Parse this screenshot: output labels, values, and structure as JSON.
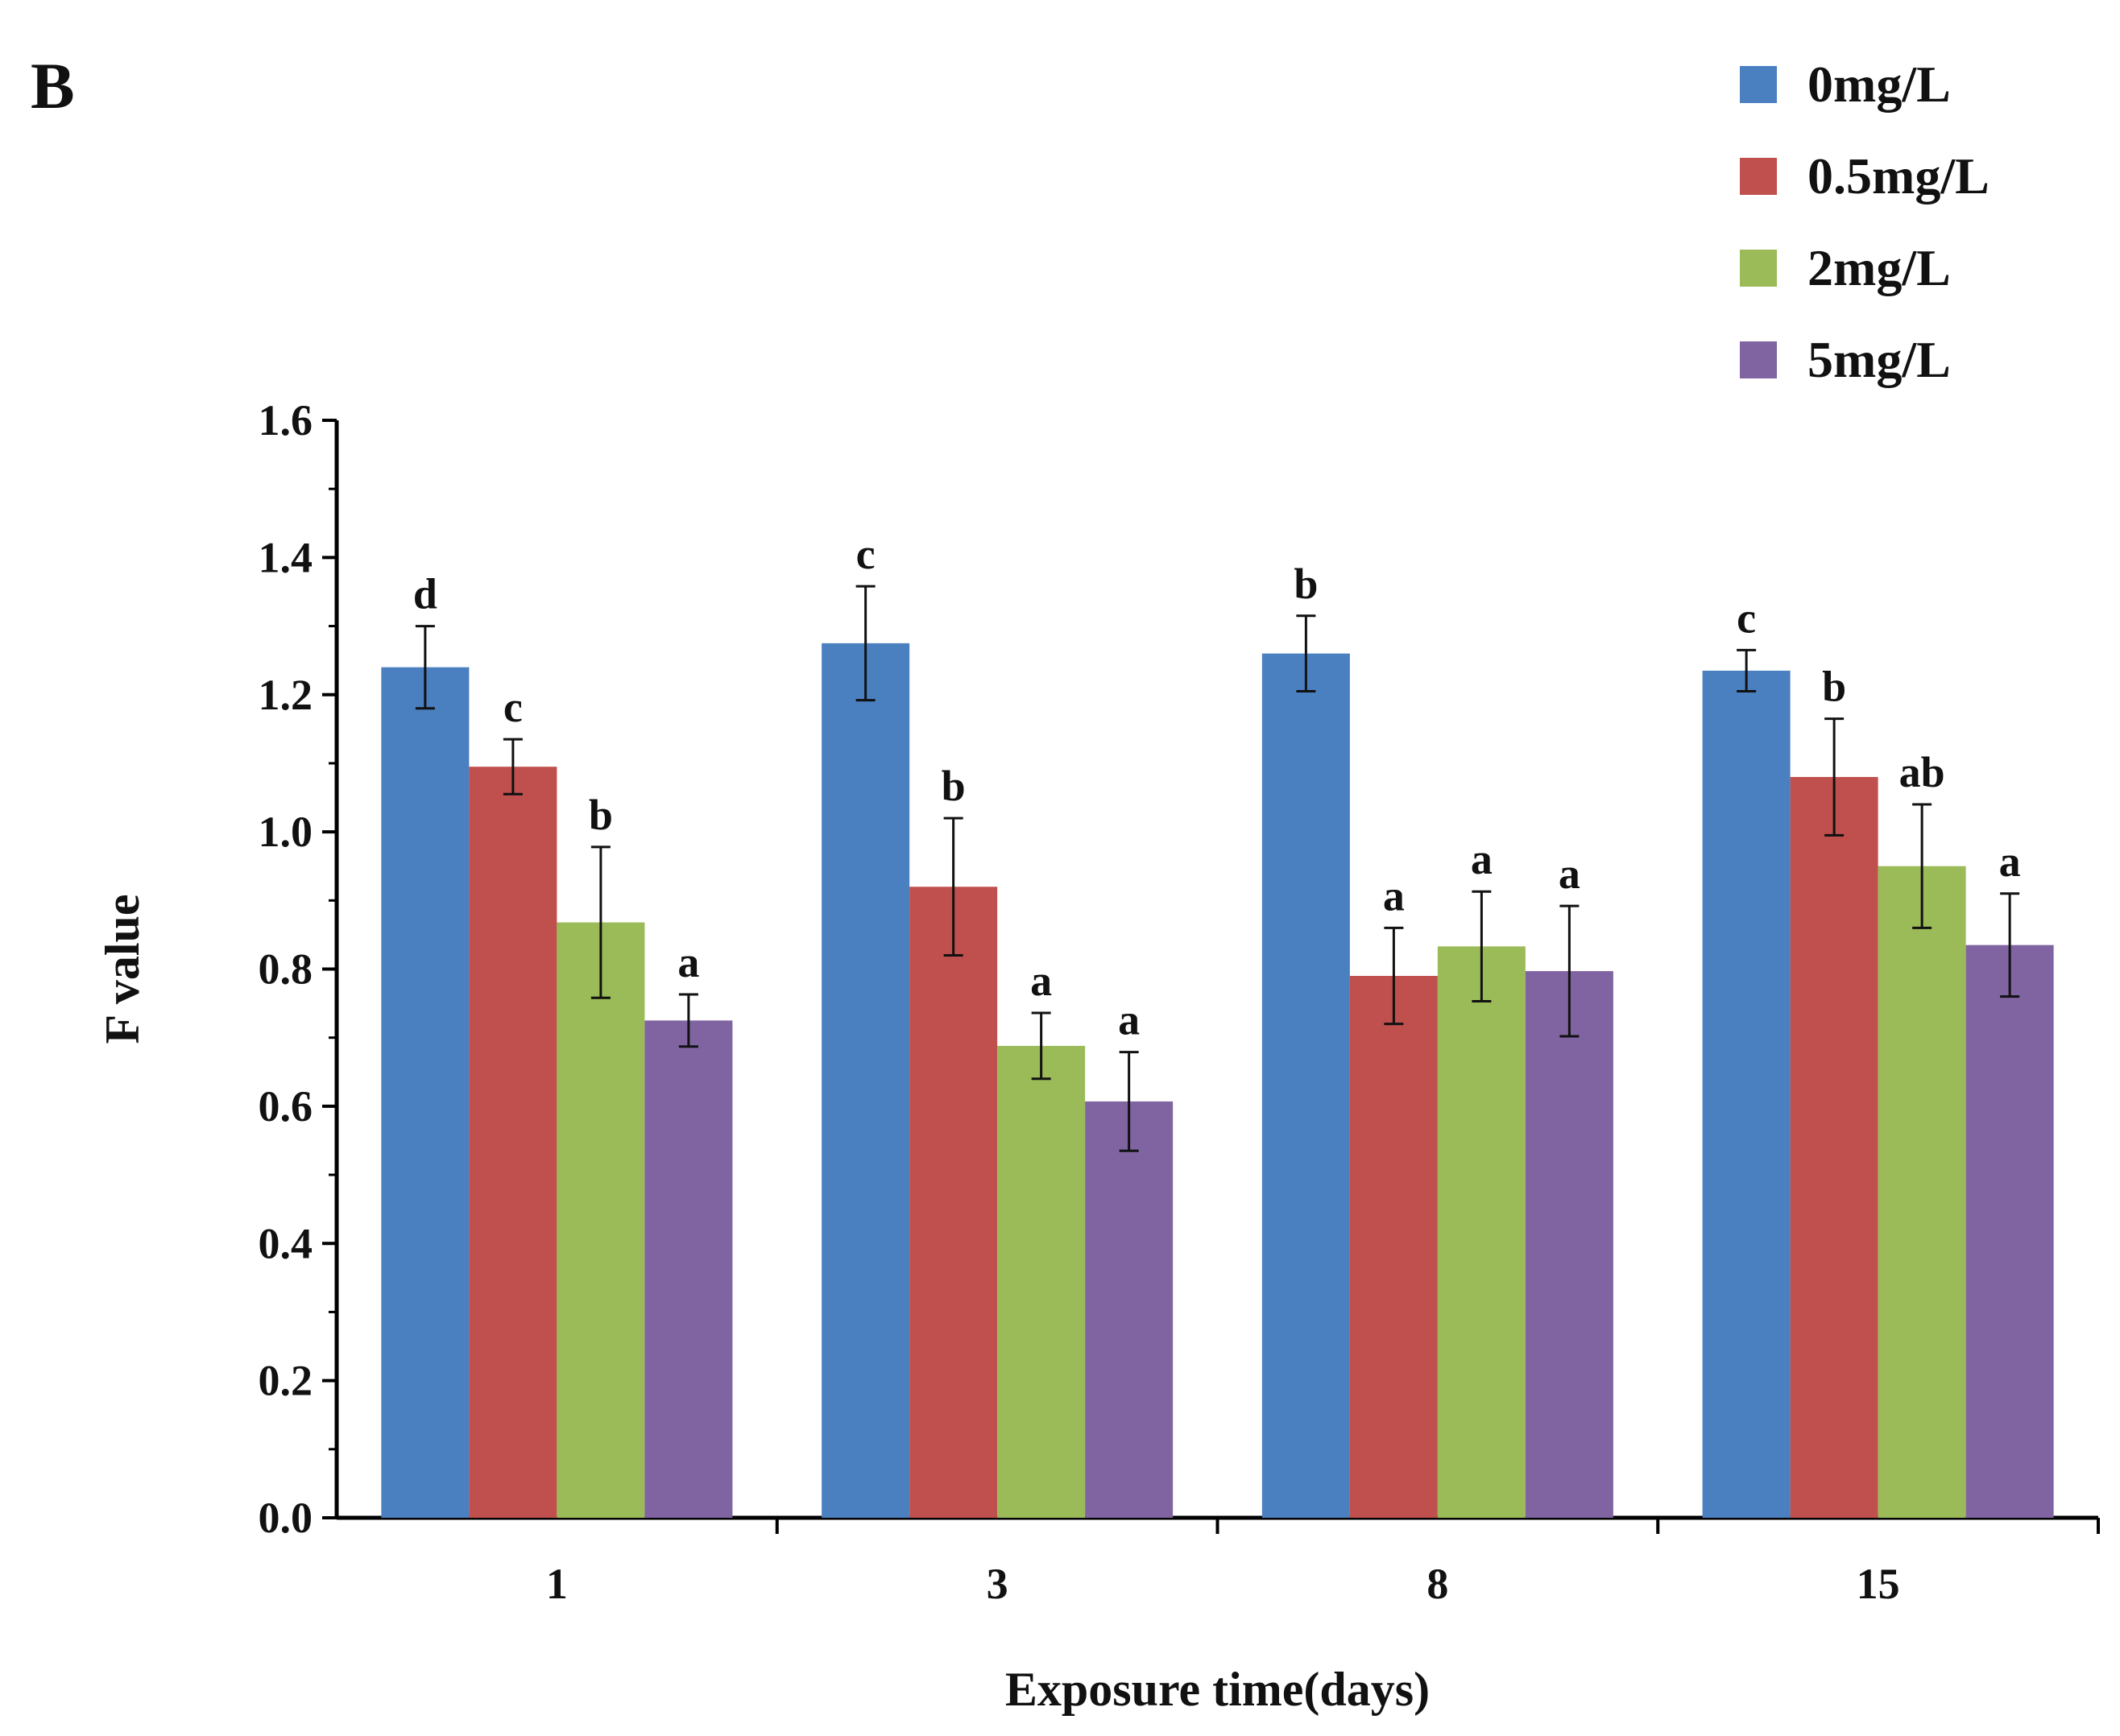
{
  "panel_label": "B",
  "chart_data": {
    "type": "bar",
    "title": "",
    "xlabel": "Exposure time(days)",
    "ylabel": "F value",
    "ylim": [
      0.0,
      1.6
    ],
    "yticks": [
      "0.0",
      "0.2",
      "0.4",
      "0.6",
      "0.8",
      "1.0",
      "1.2",
      "1.4",
      "1.6"
    ],
    "categories": [
      "1",
      "3",
      "8",
      "15"
    ],
    "legend_position": "top-right",
    "series": [
      {
        "name": "0mg/L",
        "color": "#4a7fc0",
        "values": [
          1.24,
          1.275,
          1.26,
          1.235
        ],
        "errors": [
          0.06,
          0.083,
          0.055,
          0.03
        ],
        "labels": [
          "d",
          "c",
          "b",
          "c"
        ]
      },
      {
        "name": "0.5mg/L",
        "color": "#c0504d",
        "values": [
          1.095,
          0.92,
          0.79,
          1.08
        ],
        "errors": [
          0.04,
          0.1,
          0.07,
          0.085
        ],
        "labels": [
          "c",
          "b",
          "a",
          "b"
        ]
      },
      {
        "name": "2mg/L",
        "color": "#9bbb59",
        "values": [
          0.868,
          0.688,
          0.833,
          0.95
        ],
        "errors": [
          0.11,
          0.048,
          0.08,
          0.09
        ],
        "labels": [
          "b",
          "a",
          "a",
          "ab"
        ]
      },
      {
        "name": "5mg/L",
        "color": "#8064a2",
        "values": [
          0.725,
          0.607,
          0.797,
          0.835
        ],
        "errors": [
          0.038,
          0.072,
          0.095,
          0.075
        ],
        "labels": [
          "a",
          "a",
          "a",
          "a"
        ]
      }
    ]
  }
}
